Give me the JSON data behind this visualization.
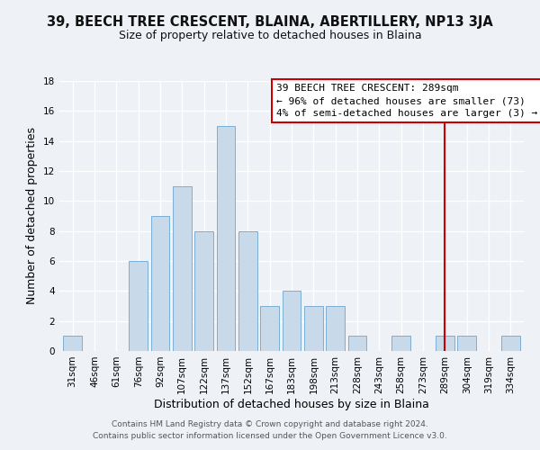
{
  "title": "39, BEECH TREE CRESCENT, BLAINA, ABERTILLERY, NP13 3JA",
  "subtitle": "Size of property relative to detached houses in Blaina",
  "xlabel": "Distribution of detached houses by size in Blaina",
  "ylabel": "Number of detached properties",
  "bin_labels": [
    "31sqm",
    "46sqm",
    "61sqm",
    "76sqm",
    "92sqm",
    "107sqm",
    "122sqm",
    "137sqm",
    "152sqm",
    "167sqm",
    "183sqm",
    "198sqm",
    "213sqm",
    "228sqm",
    "243sqm",
    "258sqm",
    "273sqm",
    "289sqm",
    "304sqm",
    "319sqm",
    "334sqm"
  ],
  "bin_values": [
    1,
    0,
    0,
    6,
    9,
    11,
    8,
    15,
    8,
    3,
    4,
    3,
    3,
    1,
    0,
    1,
    0,
    1,
    1,
    0,
    1
  ],
  "bar_color": "#c8d9ea",
  "bar_edgecolor": "#7aafd4",
  "vline_x_index": 17,
  "vline_color": "#cc0000",
  "annotation_line1": "39 BEECH TREE CRESCENT: 289sqm",
  "annotation_line2": "← 96% of detached houses are smaller (73)",
  "annotation_line3": "4% of semi-detached houses are larger (3) →",
  "annotation_box_edgecolor": "#cc0000",
  "ylim": [
    0,
    18
  ],
  "yticks": [
    0,
    2,
    4,
    6,
    8,
    10,
    12,
    14,
    16,
    18
  ],
  "footnote1": "Contains HM Land Registry data © Crown copyright and database right 2024.",
  "footnote2": "Contains public sector information licensed under the Open Government Licence v3.0.",
  "bg_color": "#eef2f7",
  "grid_color": "#ffffff",
  "title_fontsize": 10.5,
  "subtitle_fontsize": 9,
  "axis_label_fontsize": 9,
  "tick_fontsize": 7.5,
  "annotation_fontsize": 8,
  "footnote_fontsize": 6.5
}
